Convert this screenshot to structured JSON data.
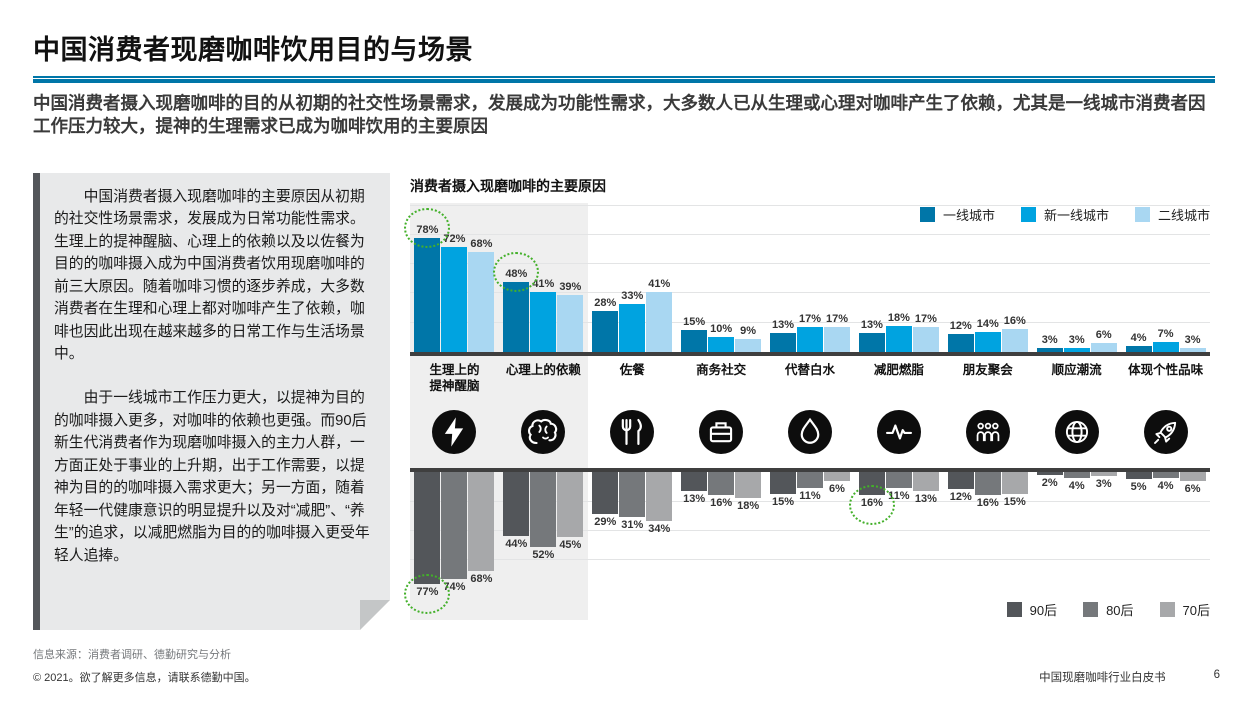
{
  "header": {
    "title": "中国消费者现磨咖啡饮用目的与场景",
    "subtitle": "中国消费者摄入现磨咖啡的目的从初期的社交性场景需求，发展成为功能性需求，大多数人已从生理或心理对咖啡产生了依赖，尤其是一线城市消费者因工作压力较大，提神的生理需求已成为咖啡饮用的主要原因"
  },
  "sidebar": {
    "paragraph1": "中国消费者摄入现磨咖啡的主要原因从初期的社交性场景需求，发展成为日常功能性需求。生理上的提神醒脑、心理上的依赖以及以佐餐为目的的咖啡摄入成为中国消费者饮用现磨咖啡的前三大原因。随着咖啡习惯的逐步养成，大多数消费者在生理和心理上都对咖啡产生了依赖，咖啡也因此出现在越来越多的日常工作与生活场景中。",
    "paragraph2": "由于一线城市工作压力更大，以提神为目的的咖啡摄入更多，对咖啡的依赖也更强。而90后新生代消费者作为现磨咖啡摄入的主力人群，一方面正处于事业的上升期，出于工作需要，以提神为目的的咖啡摄入需求更大；另一方面，随着年轻一代健康意识的明显提升以及对“减肥”、“养生”的追求，以减肥燃脂为目的的咖啡摄入更受年轻人追捧。"
  },
  "chart_data": {
    "type": "bar",
    "title": "消费者摄入现磨咖啡的主要原因",
    "unit": "%",
    "categories": [
      "生理上的\n提神醒脑",
      "心理上的依赖",
      "佐餐",
      "商务社交",
      "代替白水",
      "减肥燃脂",
      "朋友聚会",
      "顺应潮流",
      "体现个性品味"
    ],
    "category_icons": [
      "bolt-icon",
      "brain-icon",
      "cutlery-icon",
      "briefcase-icon",
      "droplet-icon",
      "pulse-icon",
      "people-icon",
      "globe-icon",
      "rocket-icon"
    ],
    "top_chart": {
      "orientation": "upward",
      "legend_position": "top-right",
      "series": [
        {
          "name": "一线城市",
          "color": "#0076A8",
          "values": [
            78,
            48,
            28,
            15,
            13,
            13,
            12,
            3,
            4
          ]
        },
        {
          "name": "新一线城市",
          "color": "#00A3E0",
          "values": [
            72,
            41,
            33,
            10,
            17,
            18,
            14,
            3,
            7
          ]
        },
        {
          "name": "二线城市",
          "color": "#A9D7F2",
          "values": [
            68,
            39,
            41,
            9,
            17,
            17,
            16,
            6,
            3
          ]
        }
      ]
    },
    "bottom_chart": {
      "orientation": "downward",
      "legend_position": "bottom-right",
      "series": [
        {
          "name": "90后",
          "color": "#53565A",
          "values": [
            77,
            44,
            29,
            13,
            15,
            16,
            12,
            2,
            5
          ]
        },
        {
          "name": "80后",
          "color": "#75787B",
          "values": [
            74,
            52,
            31,
            16,
            11,
            11,
            16,
            4,
            4
          ]
        },
        {
          "name": "70后",
          "color": "#A7A8AA",
          "values": [
            68,
            45,
            34,
            18,
            6,
            13,
            15,
            3,
            6
          ]
        }
      ]
    },
    "highlighted_categories": [
      "生理上的提神醒脑",
      "心理上的依赖"
    ],
    "highlight_color": "#43B02A",
    "highlighted_values": [
      {
        "plot": "top",
        "category_index": 0,
        "series_index": 0,
        "label": "78%"
      },
      {
        "plot": "top",
        "category_index": 1,
        "series_index": 0,
        "label": "48%"
      },
      {
        "plot": "bottom",
        "category_index": 0,
        "series_index": 0,
        "label": "77%"
      },
      {
        "plot": "bottom",
        "category_index": 5,
        "series_index": 0,
        "label": "16%"
      }
    ]
  },
  "footer": {
    "source": "信息来源：消费者调研、德勤研究与分析",
    "copyright": "© 2021。欲了解更多信息，请联系德勤中国。",
    "report_title": "中国现磨咖啡行业白皮书",
    "page_number": "6"
  }
}
